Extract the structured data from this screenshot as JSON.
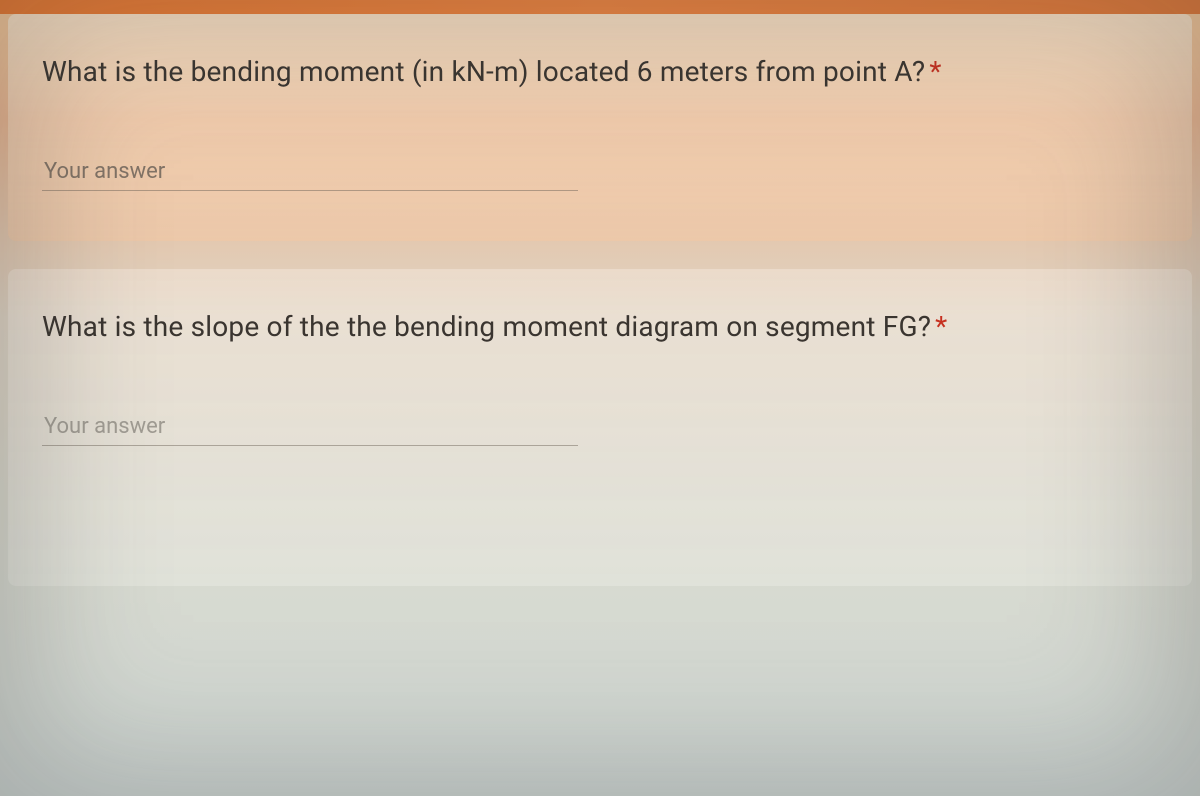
{
  "questions": [
    {
      "text": "What is the bending moment (in kN-m) located 6 meters from point A?",
      "required_marker": "*",
      "placeholder": "Your answer"
    },
    {
      "text": "What is the slope of the the bending moment diagram on segment FG?",
      "required_marker": "*",
      "placeholder": "Your answer"
    }
  ],
  "colors": {
    "accent_bar": "#e87830",
    "text": "#3a3530",
    "required": "#c63020",
    "placeholder": "#6e645a"
  }
}
